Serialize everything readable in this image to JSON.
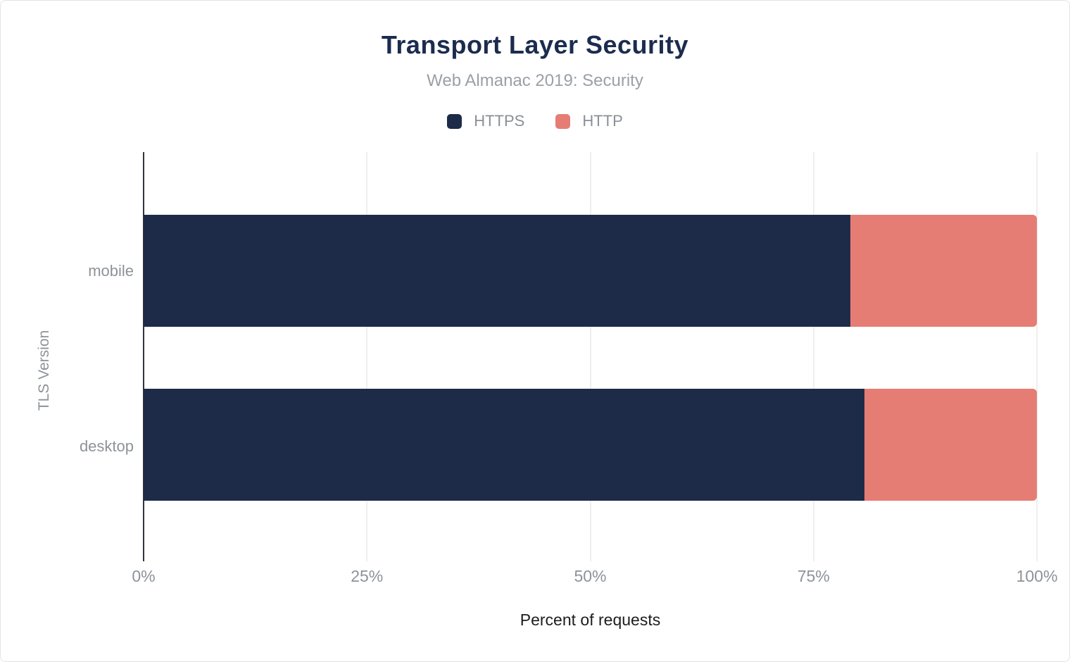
{
  "title": "Transport Layer Security",
  "subtitle": "Web Almanac 2019: Security",
  "colors": {
    "https": "#1d2b49",
    "http": "#e57d74",
    "title": "#1b2c4f",
    "subtitle_text": "#9aa0a6",
    "axis_text": "#8e9399",
    "axis_line": "#30343c",
    "gridline": "#efefef",
    "xlabel_text": "#1c1d1f"
  },
  "legend": {
    "items": [
      {
        "label": "HTTPS",
        "color": "#1d2b49"
      },
      {
        "label": "HTTP",
        "color": "#e57d74"
      }
    ]
  },
  "chart_data": {
    "type": "bar",
    "orientation": "horizontal",
    "stacked": true,
    "title": "Transport Layer Security",
    "subtitle": "Web Almanac 2019: Security",
    "categories": [
      "mobile",
      "desktop"
    ],
    "series": [
      {
        "name": "HTTPS",
        "color": "#1d2b49",
        "values": [
          79.1,
          80.7
        ]
      },
      {
        "name": "HTTP",
        "color": "#e57d74",
        "values": [
          20.9,
          19.3
        ]
      }
    ],
    "xlabel": "Percent of requests",
    "ylabel": "TLS Version",
    "xlim": [
      0,
      100
    ],
    "xticks": [
      "0%",
      "25%",
      "50%",
      "75%",
      "100%"
    ],
    "xtick_values": [
      0,
      25,
      50,
      75,
      100
    ],
    "grid": true,
    "legend_position": "top-center"
  }
}
